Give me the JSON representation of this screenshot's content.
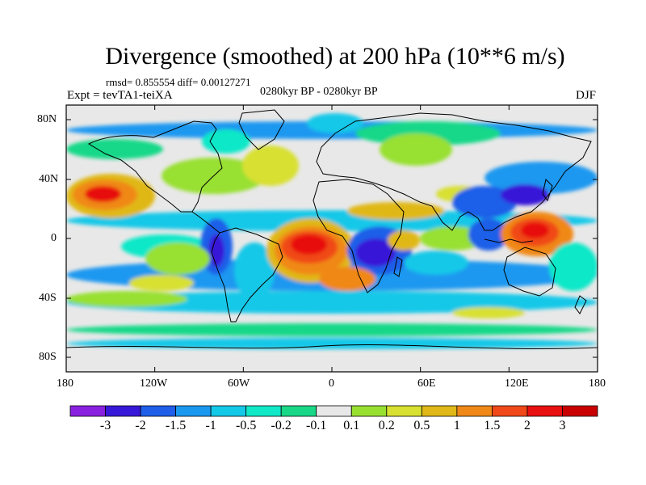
{
  "title": "Divergence (smoothed) at 200 hPa (10**6 m/s)",
  "stats": "rmsd= 0.855554 diff= 0.00127271",
  "experiment": "Expt = tevTA1-teiXA",
  "period": "0280kyr BP - 0280kyr BP",
  "season": "DJF",
  "lat_ticks": [
    "80N",
    "40N",
    "0",
    "40S",
    "80S"
  ],
  "lon_ticks": [
    "180",
    "120W",
    "60W",
    "0",
    "60E",
    "120E",
    "180"
  ],
  "colorbar": {
    "labels": [
      "-3",
      "-2",
      "-1.5",
      "-1",
      "-0.5",
      "-0.2",
      "-0.1",
      "0.1",
      "0.2",
      "0.5",
      "1",
      "1.5",
      "2",
      "3"
    ],
    "colors": [
      "#8a20e0",
      "#3818d8",
      "#1e5ee8",
      "#1a98f0",
      "#14c8e8",
      "#10e8c8",
      "#18d888",
      "#e8e8e8",
      "#98e030",
      "#d8e030",
      "#e0b818",
      "#f08818",
      "#f04818",
      "#e81010",
      "#c80000"
    ]
  },
  "map_colors": {
    "background": "#e8e8e8",
    "neg_strong": "#3818d8",
    "neg_mid": "#1e5ee8",
    "neg_light": "#1a98f0",
    "cyan": "#14c8e8",
    "teal": "#10e8c8",
    "green": "#18d888",
    "yellowgreen": "#98e030",
    "yellow": "#d8e030",
    "gold": "#e0b818",
    "orange": "#f08818",
    "redorange": "#f04818",
    "red": "#e81010"
  }
}
